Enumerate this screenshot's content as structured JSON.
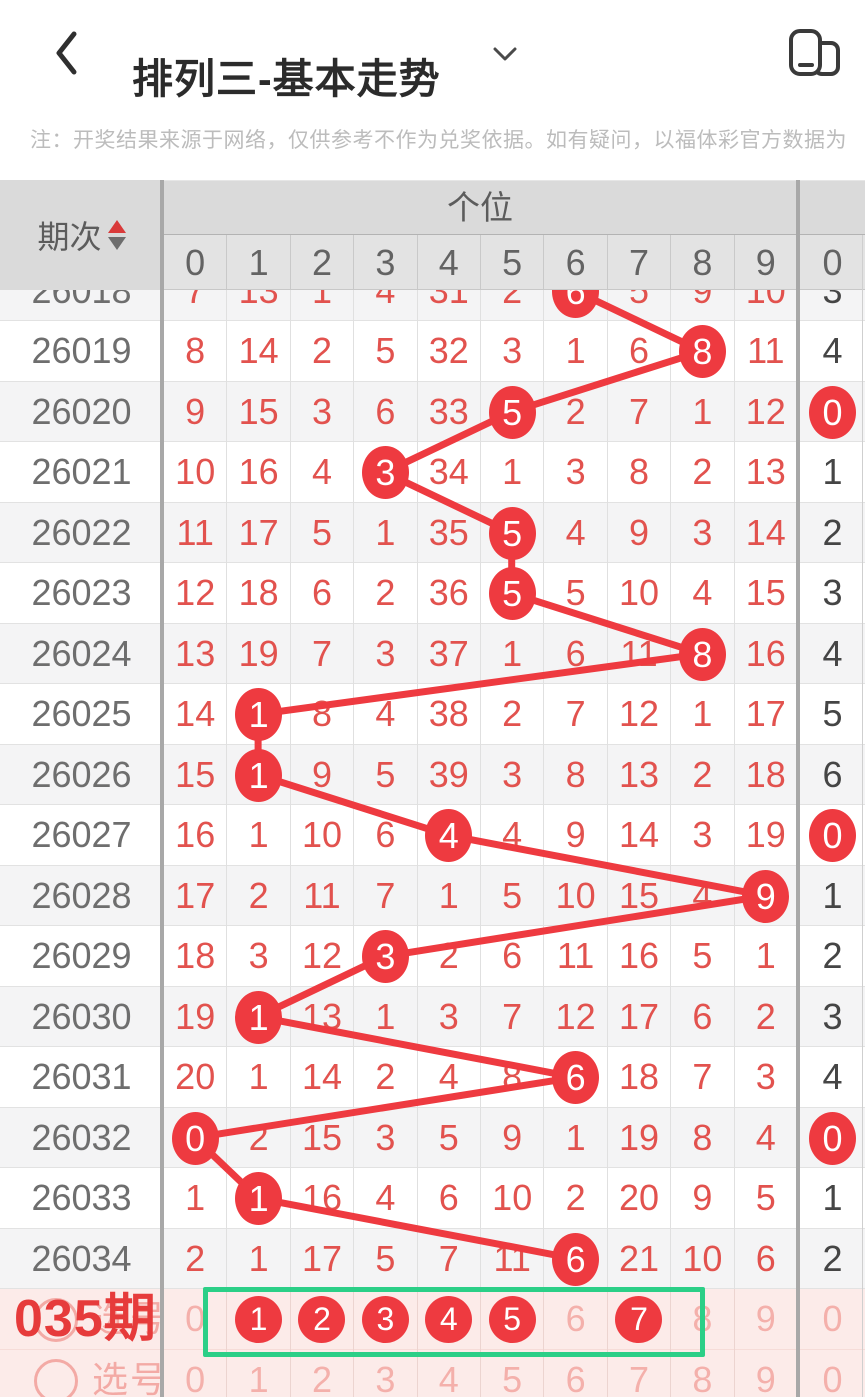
{
  "header": {
    "title": "排列三-基本走势"
  },
  "notice": "注：开奖结果来源于网络，仅供参考不作为兑奖依据。如有疑问，以福体彩官方数据为",
  "colors": {
    "red": "#ee3a40",
    "red_text": "#e2524e",
    "dark_text": "#454545",
    "pink_text": "#f3aaa5",
    "pink_bg": "#fcebe9",
    "green": "#2bcf87",
    "header_bg": "#dadada",
    "alt_row": "#f4f4f5",
    "divider": "#a8a8a8"
  },
  "chart_data": {
    "type": "table",
    "title": "排列三-基本走势",
    "period_label": "期次",
    "section_label": "个位",
    "digit_headers": [
      "0",
      "1",
      "2",
      "3",
      "4",
      "5",
      "6",
      "7",
      "8",
      "9"
    ],
    "next_col_header": "0",
    "rows": [
      {
        "period": "26018",
        "cells": [
          7,
          13,
          1,
          4,
          31,
          2,
          6,
          5,
          9,
          10
        ],
        "hit": 6,
        "next": "3",
        "next_hit": false
      },
      {
        "period": "26019",
        "cells": [
          8,
          14,
          2,
          5,
          32,
          3,
          1,
          6,
          8,
          11
        ],
        "hit": 8,
        "next": "4",
        "next_hit": false
      },
      {
        "period": "26020",
        "cells": [
          9,
          15,
          3,
          6,
          33,
          5,
          2,
          7,
          1,
          12
        ],
        "hit": 5,
        "next": "0",
        "next_hit": true
      },
      {
        "period": "26021",
        "cells": [
          10,
          16,
          4,
          3,
          34,
          1,
          3,
          8,
          2,
          13
        ],
        "hit": 3,
        "next": "1",
        "next_hit": false
      },
      {
        "period": "26022",
        "cells": [
          11,
          17,
          5,
          1,
          35,
          5,
          4,
          9,
          3,
          14
        ],
        "hit": 5,
        "next": "2",
        "next_hit": false
      },
      {
        "period": "26023",
        "cells": [
          12,
          18,
          6,
          2,
          36,
          5,
          5,
          10,
          4,
          15
        ],
        "hit": 5,
        "next": "3",
        "next_hit": false
      },
      {
        "period": "26024",
        "cells": [
          13,
          19,
          7,
          3,
          37,
          1,
          6,
          11,
          8,
          16
        ],
        "hit": 8,
        "next": "4",
        "next_hit": false
      },
      {
        "period": "26025",
        "cells": [
          14,
          1,
          8,
          4,
          38,
          2,
          7,
          12,
          1,
          17
        ],
        "hit": 1,
        "next": "5",
        "next_hit": false
      },
      {
        "period": "26026",
        "cells": [
          15,
          1,
          9,
          5,
          39,
          3,
          8,
          13,
          2,
          18
        ],
        "hit": 1,
        "next": "6",
        "next_hit": false
      },
      {
        "period": "26027",
        "cells": [
          16,
          1,
          10,
          6,
          4,
          4,
          9,
          14,
          3,
          19
        ],
        "hit": 4,
        "next": "0",
        "next_hit": true
      },
      {
        "period": "26028",
        "cells": [
          17,
          2,
          11,
          7,
          1,
          5,
          10,
          15,
          4,
          9
        ],
        "hit": 9,
        "next": "1",
        "next_hit": false
      },
      {
        "period": "26029",
        "cells": [
          18,
          3,
          12,
          3,
          2,
          6,
          11,
          16,
          5,
          1
        ],
        "hit": 3,
        "next": "2",
        "next_hit": false
      },
      {
        "period": "26030",
        "cells": [
          19,
          1,
          13,
          1,
          3,
          7,
          12,
          17,
          6,
          2
        ],
        "hit": 1,
        "next": "3",
        "next_hit": false
      },
      {
        "period": "26031",
        "cells": [
          20,
          1,
          14,
          2,
          4,
          8,
          6,
          18,
          7,
          3
        ],
        "hit": 6,
        "next": "4",
        "next_hit": false
      },
      {
        "period": "26032",
        "cells": [
          0,
          2,
          15,
          3,
          5,
          9,
          1,
          19,
          8,
          4
        ],
        "hit": 0,
        "next": "0",
        "next_hit": true
      },
      {
        "period": "26033",
        "cells": [
          1,
          1,
          16,
          4,
          6,
          10,
          2,
          20,
          9,
          5
        ],
        "hit": 1,
        "next": "1",
        "next_hit": false
      },
      {
        "period": "26034",
        "cells": [
          2,
          1,
          17,
          5,
          7,
          11,
          6,
          21,
          10,
          6
        ],
        "hit": 6,
        "next": "2",
        "next_hit": false
      }
    ],
    "pick_rows": [
      {
        "label": "选号",
        "overlay": "035期",
        "cells": [
          "0",
          "1",
          "2",
          "3",
          "4",
          "5",
          "6",
          "7",
          "8",
          "9"
        ],
        "selected": [
          1,
          2,
          3,
          4,
          5,
          7
        ],
        "next": "0"
      },
      {
        "label": "选号",
        "cells": [
          "0",
          "1",
          "2",
          "3",
          "4",
          "5",
          "6",
          "7",
          "8",
          "9"
        ],
        "selected": [],
        "next": "0"
      }
    ]
  }
}
